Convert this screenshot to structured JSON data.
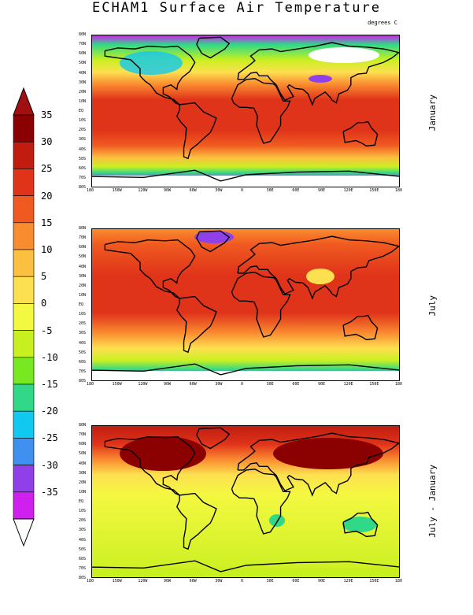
{
  "title": "ECHAM1 Surface Air Temperature",
  "units": "degrees C",
  "colorbar": {
    "labels": [
      "35",
      "30",
      "25",
      "20",
      "15",
      "10",
      "5",
      "0",
      "-5",
      "-10",
      "-15",
      "-20",
      "-25",
      "-30",
      "-35"
    ],
    "colors": [
      "#8b0000",
      "#c01c10",
      "#e0341a",
      "#f05a20",
      "#fa8c30",
      "#fbc040",
      "#fde050",
      "#f4f840",
      "#c8f020",
      "#78e820",
      "#30d888",
      "#10c8f0",
      "#4090f0",
      "#9040e8",
      "#d020f0"
    ],
    "top_arrow_color": "#a01010",
    "bottom_arrow_color": "#ffffff"
  },
  "lat_labels": [
    "80N",
    "70N",
    "60N",
    "50N",
    "40N",
    "30N",
    "20N",
    "10N",
    "EQ",
    "10S",
    "20S",
    "30S",
    "40S",
    "50S",
    "60S",
    "70S",
    "80S"
  ],
  "lon_labels": [
    "180",
    "150W",
    "120W",
    "90W",
    "60W",
    "30W",
    "0",
    "30E",
    "60E",
    "90E",
    "120E",
    "150E",
    "180"
  ],
  "panels": [
    {
      "name": "January",
      "label": "January"
    },
    {
      "name": "July",
      "label": "July"
    },
    {
      "name": "July - January",
      "label": "July - January"
    }
  ]
}
